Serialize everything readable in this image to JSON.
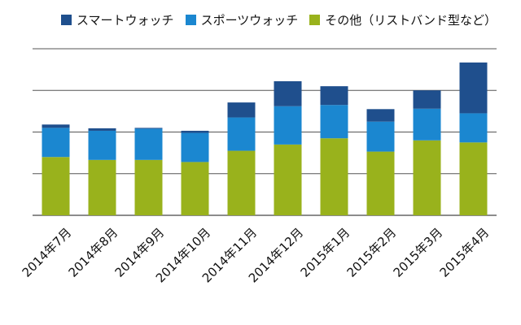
{
  "chart_data": {
    "type": "bar",
    "stacked": true,
    "categories": [
      "2014年7月",
      "2014年8月",
      "2014年9月",
      "2014年10月",
      "2014年11月",
      "2014年12月",
      "2015年1月",
      "2015年2月",
      "2015年3月",
      "2015年4月"
    ],
    "series": [
      {
        "name": "その他（リストバンド型など）",
        "color": "#99b21c",
        "values": [
          1.4,
          1.33,
          1.33,
          1.28,
          1.55,
          1.7,
          1.85,
          1.53,
          1.8,
          1.75
        ]
      },
      {
        "name": "スポーツウォッチ",
        "color": "#1b87d0",
        "values": [
          0.7,
          0.7,
          0.75,
          0.7,
          0.8,
          0.92,
          0.8,
          0.72,
          0.76,
          0.7
        ]
      },
      {
        "name": "スマートウォッチ",
        "color": "#1f4f8d",
        "values": [
          0.08,
          0.06,
          0.02,
          0.05,
          0.36,
          0.6,
          0.45,
          0.3,
          0.44,
          1.22
        ]
      }
    ],
    "legend_order": [
      2,
      1,
      0
    ],
    "ylim": [
      0,
      4
    ],
    "grid": true,
    "legend_position": "top",
    "xlabel": "",
    "ylabel": ""
  }
}
